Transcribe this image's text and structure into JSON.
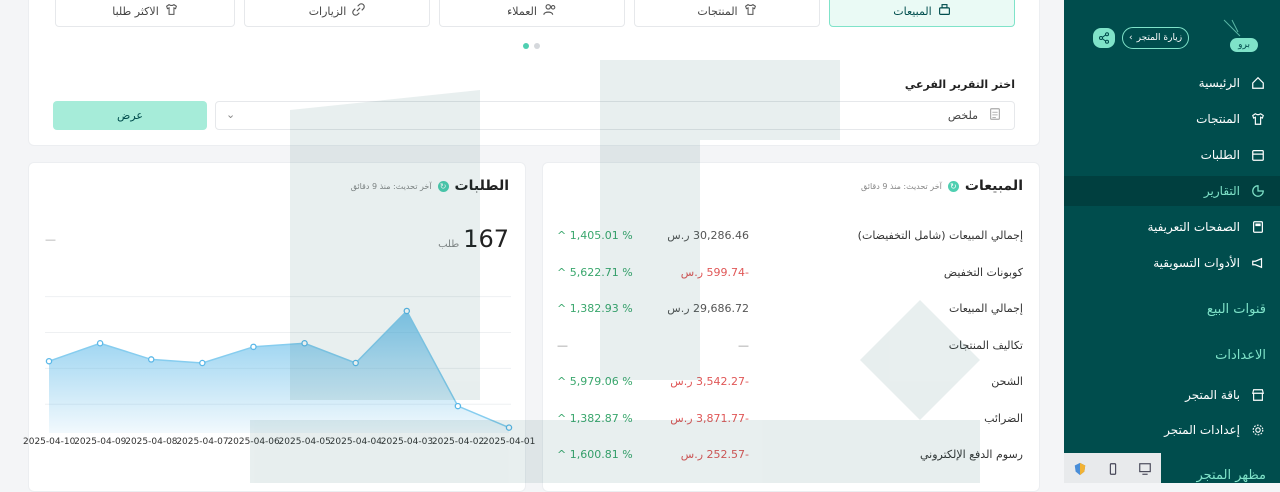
{
  "tabs": [
    {
      "label": "المبيعات",
      "icon": "cash-register-icon",
      "active": true
    },
    {
      "label": "المنتجات",
      "icon": "shirt-icon",
      "active": false
    },
    {
      "label": "العملاء",
      "icon": "users-icon",
      "active": false
    },
    {
      "label": "الزيارات",
      "icon": "link-icon",
      "active": false
    },
    {
      "label": "الاكثر طلبا",
      "icon": "shirt-icon",
      "active": false
    }
  ],
  "subreport": {
    "label": "اختر التقرير الفرعي",
    "selected": "ملخص",
    "show_button": "عرض"
  },
  "sales": {
    "title": "المبيعات",
    "updated": "آخر تحديث: منذ 9 دقائق",
    "rows": [
      {
        "label": "إجمالي المبيعات (شامل التخفيضات)",
        "amount": "30,286.46 ر.س",
        "pct": "^ 1,405.01 %",
        "negative": false
      },
      {
        "label": "كوبونات التخفيض",
        "amount": "-599.74 ر.س",
        "pct": "^ 5,622.71 %",
        "negative": true
      },
      {
        "label": "إجمالي المبيعات",
        "amount": "29,686.72 ر.س",
        "pct": "^ 1,382.93 %",
        "negative": false
      },
      {
        "label": "تكاليف المنتجات",
        "amount": "—",
        "pct": "—",
        "negative": false,
        "dash": true
      },
      {
        "label": "الشحن",
        "amount": "-3,542.27 ر.س",
        "pct": "^ 5,979.06 %",
        "negative": true
      },
      {
        "label": "الضرائب",
        "amount": "-3,871.77 ر.س",
        "pct": "^ 1,382.87 %",
        "negative": true
      },
      {
        "label": "رسوم الدفع الإلكتروني",
        "amount": "-252.57 ر.س",
        "pct": "^ 1,600.81 %",
        "negative": true
      }
    ]
  },
  "orders": {
    "title": "الطلبات",
    "updated": "آخر تحديث: منذ 9 دقائق",
    "total": "167",
    "unit": "طلب",
    "compare": "—"
  },
  "chart_data": {
    "type": "area",
    "x": [
      "2025-04-10",
      "2025-04-09",
      "2025-04-08",
      "2025-04-07",
      "2025-04-06",
      "2025-04-05",
      "2025-04-04",
      "2025-04-03",
      "2025-04-02",
      "2025-04-01"
    ],
    "series": [
      {
        "values": [
          17,
          22,
          17.5,
          16.5,
          21,
          22,
          16.5,
          31,
          4.5,
          -1.5
        ]
      }
    ],
    "ylim": [
      -3,
      36
    ],
    "grid": true,
    "color": "#5bb8e8"
  },
  "sidebar": {
    "badge": "برو",
    "visit": "زيارة المتجر",
    "items": [
      {
        "label": "الرئيسية",
        "icon": "home-icon",
        "active": false
      },
      {
        "label": "المنتجات",
        "icon": "shirt-icon",
        "active": false
      },
      {
        "label": "الطلبات",
        "icon": "box-icon",
        "active": false
      },
      {
        "label": "التقارير",
        "icon": "pie-chart-icon",
        "active": true
      },
      {
        "label": "الصفحات التعريفية",
        "icon": "page-icon",
        "active": false
      },
      {
        "label": "الأدوات التسويقية",
        "icon": "megaphone-icon",
        "active": false
      }
    ],
    "section_channels": "قنوات البيع",
    "section_settings": "الاعدادات",
    "settings_items": [
      {
        "label": "باقة المتجر",
        "icon": "store-icon"
      },
      {
        "label": "إعدادات المتجر",
        "icon": "gear-icon"
      }
    ],
    "section_appearance": "مظهر المتجر"
  },
  "colors": {
    "accent": "#7fe3c9",
    "sidebar": "#004d4d",
    "positive": "#3aa76d",
    "negative": "#e05757"
  }
}
